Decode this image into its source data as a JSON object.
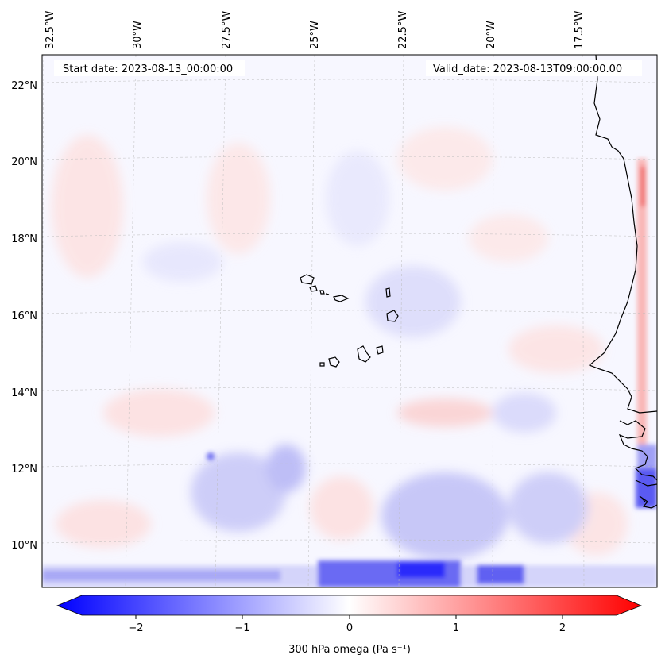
{
  "map": {
    "start_date_text": "Start date: 2023-08-13_00:00:00",
    "valid_date_text": "Valid_date: 2023-08-13T09:00:00.00",
    "lon_labels": [
      "32.5°W",
      "30°W",
      "27.5°W",
      "25°W",
      "22.5°W",
      "20°W",
      "17.5°W"
    ],
    "lat_labels": [
      "22°N",
      "20°N",
      "18°N",
      "16°N",
      "14°N",
      "12°N",
      "10°N"
    ],
    "field": "300 hPa omega",
    "colormap": "bwr",
    "gridlines": true
  },
  "colorbar": {
    "label": "300 hPa omega (Pa s⁻¹)",
    "ticks": [
      "−2",
      "−1",
      "0",
      "1",
      "2"
    ],
    "tick_values": [
      -2,
      -1,
      0,
      1,
      2
    ],
    "range": [
      -2.6,
      2.6
    ],
    "extend": "both",
    "colors": {
      "min": "#0000ff",
      "mid": "#ffffff",
      "max": "#ff0000"
    }
  }
}
